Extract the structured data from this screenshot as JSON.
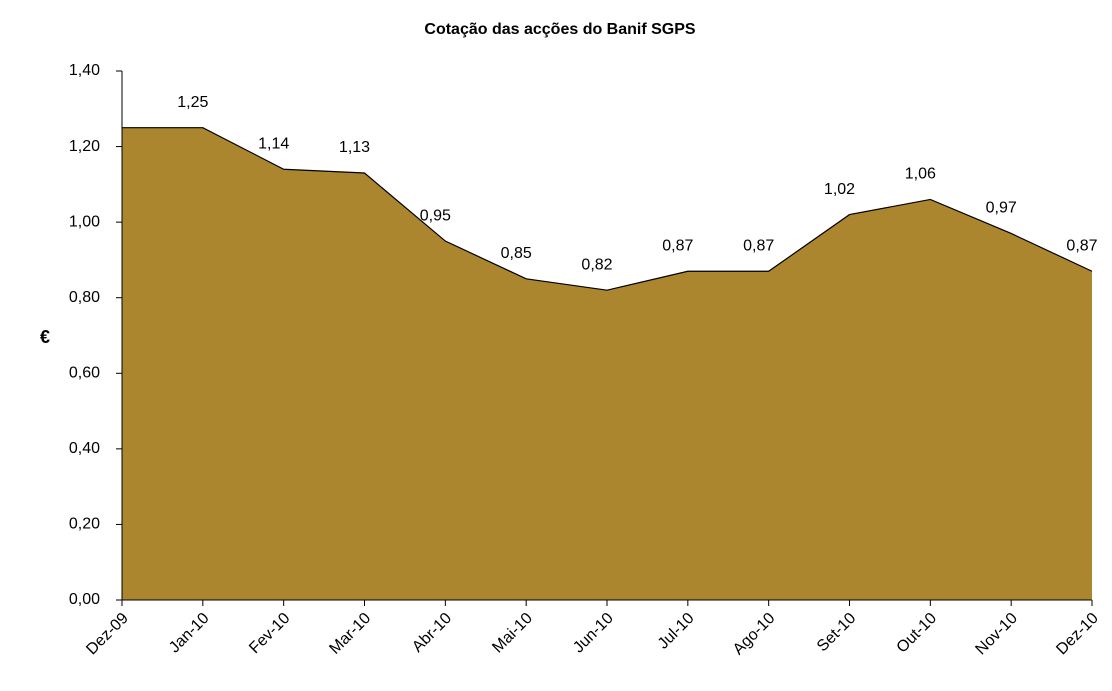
{
  "chart_data": {
    "type": "area",
    "title": "Cotação das acções do Banif SGPS",
    "y_label": "€",
    "categories": [
      "Dez-09",
      "Jan-10",
      "Fev-10",
      "Mar-10",
      "Abr-10",
      "Mai-10",
      "Jun-10",
      "Jul-10",
      "Ago-10",
      "Set-10",
      "Out-10",
      "Nov-10",
      "Dez-10"
    ],
    "values": [
      1.25,
      1.25,
      1.14,
      1.13,
      0.95,
      0.85,
      0.82,
      0.87,
      0.87,
      1.02,
      1.06,
      0.97,
      0.87
    ],
    "value_labels": [
      null,
      "1,25",
      "1,14",
      "1,13",
      "0,95",
      "0,85",
      "0,82",
      "0,87",
      "0,87",
      "1,02",
      "1,06",
      "0,97",
      "0,87"
    ],
    "color": "#ab862e",
    "ylim": [
      0,
      1.4
    ],
    "yticks": [
      {
        "value": 0,
        "label": "0,00"
      },
      {
        "value": 0.2,
        "label": "0,20"
      },
      {
        "value": 0.4,
        "label": "0,40"
      },
      {
        "value": 0.6,
        "label": "0,60"
      },
      {
        "value": 0.8,
        "label": "0,80"
      },
      {
        "value": 1.0,
        "label": "1,00"
      },
      {
        "value": 1.2,
        "label": "1,20"
      },
      {
        "value": 1.4,
        "label": "1,40"
      }
    ],
    "grid": false
  }
}
